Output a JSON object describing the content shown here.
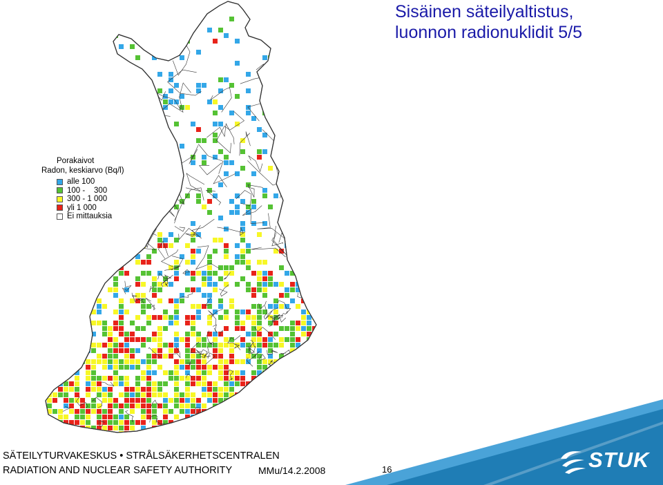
{
  "slide": {
    "title_line1": "Sisäinen säteilyaltistus,",
    "title_line2": "luonnon radionuklidit  5/5"
  },
  "legend": {
    "heading1": "Porakaivot",
    "heading2": "Radon, keskiarvo (Bq/l)",
    "items": [
      {
        "label": "alle 100",
        "color": "#33a7e8"
      },
      {
        "label": "100 -    300",
        "color": "#55c234"
      },
      {
        "label": "300 - 1 000",
        "color": "#f7f726"
      },
      {
        "label": "yli 1 000",
        "color": "#e8231a"
      },
      {
        "label": "Ei mittauksia",
        "color": "#ffffff"
      }
    ]
  },
  "footer": {
    "org_line1": "SÄTEILYTURVAKESKUS • STRÅLSÄKERHETSCENTRALEN",
    "org_line2": "RADIATION AND NUCLEAR SAFETY AUTHORITY",
    "date": "MMu/14.2.2008",
    "page": "16"
  },
  "logo": {
    "text": "STUK",
    "color": "#1f7db5"
  },
  "map_colors": {
    "border": "#333333",
    "blue": "#33a7e8",
    "green": "#55c234",
    "yellow": "#f7f726",
    "red": "#e8231a"
  }
}
